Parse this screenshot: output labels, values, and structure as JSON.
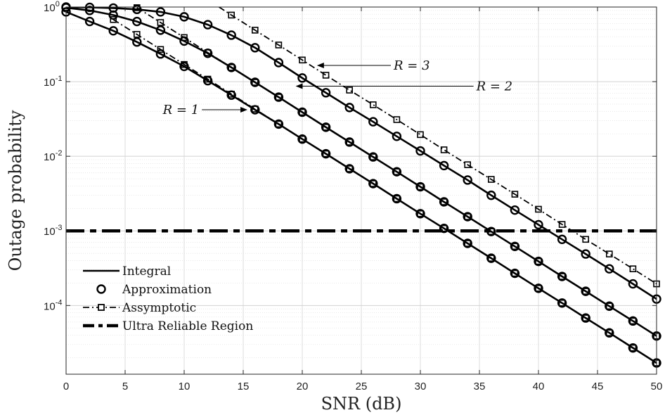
{
  "chart_data": {
    "type": "line",
    "title": "",
    "xlabel": "SNR (dB)",
    "ylabel": "Outage probability",
    "xlim": [
      0,
      50
    ],
    "ylim": [
      1.2e-05,
      1
    ],
    "yscale": "log",
    "grid": true,
    "x_ticks": [
      0,
      5,
      10,
      15,
      20,
      25,
      30,
      35,
      40,
      45,
      50
    ],
    "y_ticks": [
      {
        "value": 1,
        "label": "10",
        "exp": "0"
      },
      {
        "value": 0.1,
        "label": "10",
        "exp": "-1"
      },
      {
        "value": 0.01,
        "label": "10",
        "exp": "-2"
      },
      {
        "value": 0.001,
        "label": "10",
        "exp": "-3"
      },
      {
        "value": 0.0001,
        "label": "10",
        "exp": "-4"
      }
    ],
    "legend_position": "bottom-left",
    "legend": [
      {
        "label": "Integral",
        "style": "solid-line"
      },
      {
        "label": "Approximation",
        "style": "circle-marker"
      },
      {
        "label": "Assymptotic",
        "style": "dashdot-square"
      },
      {
        "label": "Ultra Reliable Region",
        "style": "thick-dashdot"
      }
    ],
    "ultra_reliable_threshold": 0.001,
    "series": [
      {
        "name": "R = 1",
        "x": [
          0,
          2,
          4,
          6,
          8,
          10,
          12,
          14,
          16,
          18,
          20,
          22,
          24,
          26,
          28,
          30,
          32,
          34,
          36,
          38,
          40,
          42,
          44,
          46,
          48,
          50
        ],
        "integral": [
          0.86,
          0.64,
          0.48,
          0.34,
          0.235,
          0.16,
          0.103,
          0.066,
          0.042,
          0.027,
          0.017,
          0.0108,
          0.0068,
          0.0043,
          0.0027,
          0.0017,
          0.00108,
          0.00068,
          0.00043,
          0.00027,
          0.00017,
          0.000108,
          6.8e-05,
          4.3e-05,
          2.7e-05,
          1.7e-05
        ],
        "asymptotic_x": [
          4,
          6,
          8,
          10,
          12,
          14,
          16,
          18,
          20,
          22,
          24,
          26,
          28,
          30,
          32,
          34,
          36,
          38,
          40,
          42,
          44,
          46,
          48,
          50
        ],
        "asymptotic": [
          0.68,
          0.43,
          0.27,
          0.17,
          0.108,
          0.068,
          0.043,
          0.027,
          0.017,
          0.0108,
          0.0068,
          0.0043,
          0.0027,
          0.0017,
          0.00108,
          0.00068,
          0.00043,
          0.00027,
          0.00017,
          0.000108,
          6.8e-05,
          4.3e-05,
          2.7e-05,
          1.7e-05
        ]
      },
      {
        "name": "R = 2",
        "x": [
          0,
          2,
          4,
          6,
          8,
          10,
          12,
          14,
          16,
          18,
          20,
          22,
          24,
          26,
          28,
          30,
          32,
          34,
          36,
          38,
          40,
          42,
          44,
          46,
          48,
          50
        ],
        "integral": [
          0.98,
          0.9,
          0.78,
          0.64,
          0.49,
          0.35,
          0.24,
          0.155,
          0.098,
          0.062,
          0.039,
          0.0245,
          0.0155,
          0.0098,
          0.0062,
          0.0039,
          0.00245,
          0.00155,
          0.00098,
          0.00062,
          0.00039,
          0.000245,
          0.000155,
          9.8e-05,
          6.2e-05,
          3.9e-05
        ],
        "asymptotic_x": [
          6,
          8,
          10,
          12,
          14,
          16,
          18,
          20,
          22,
          24,
          26,
          28,
          30,
          32,
          34,
          36,
          38,
          40,
          42,
          44,
          46,
          48,
          50
        ],
        "asymptotic": [
          0.98,
          0.62,
          0.39,
          0.245,
          0.155,
          0.098,
          0.062,
          0.039,
          0.0245,
          0.0155,
          0.0098,
          0.0062,
          0.0039,
          0.00245,
          0.00155,
          0.00098,
          0.00062,
          0.00039,
          0.000245,
          0.000155,
          9.8e-05,
          6.2e-05,
          3.9e-05
        ]
      },
      {
        "name": "R = 3",
        "x": [
          0,
          2,
          4,
          6,
          8,
          10,
          12,
          14,
          16,
          18,
          20,
          22,
          24,
          26,
          28,
          30,
          32,
          34,
          36,
          38,
          40,
          42,
          44,
          46,
          48,
          50
        ],
        "integral": [
          1.0,
          0.99,
          0.97,
          0.93,
          0.86,
          0.74,
          0.58,
          0.42,
          0.285,
          0.18,
          0.112,
          0.071,
          0.045,
          0.029,
          0.0185,
          0.0118,
          0.0075,
          0.0048,
          0.003,
          0.0019,
          0.00121,
          0.00077,
          0.00049,
          0.00031,
          0.000195,
          0.000122
        ],
        "asymptotic_x": [
          12,
          14,
          16,
          18,
          20,
          22,
          24,
          26,
          28,
          30,
          32,
          34,
          36,
          38,
          40,
          42,
          44,
          46,
          48,
          50
        ],
        "asymptotic": [
          1.25,
          0.78,
          0.49,
          0.31,
          0.195,
          0.122,
          0.077,
          0.049,
          0.031,
          0.0195,
          0.0122,
          0.0077,
          0.0049,
          0.0031,
          0.00195,
          0.00122,
          0.00077,
          0.00049,
          0.00031,
          0.000195
        ]
      }
    ],
    "annotations": [
      {
        "label": "R = 1",
        "arrow_to": [
          15.3,
          0.042
        ],
        "text_at": [
          11.5,
          0.042
        ]
      },
      {
        "label": "R = 2",
        "arrow_to": [
          19.5,
          0.087
        ],
        "text_at": [
          34.5,
          0.087
        ]
      },
      {
        "label": "R = 3",
        "arrow_to": [
          21.3,
          0.165
        ],
        "text_at": [
          27.5,
          0.165
        ]
      }
    ]
  }
}
